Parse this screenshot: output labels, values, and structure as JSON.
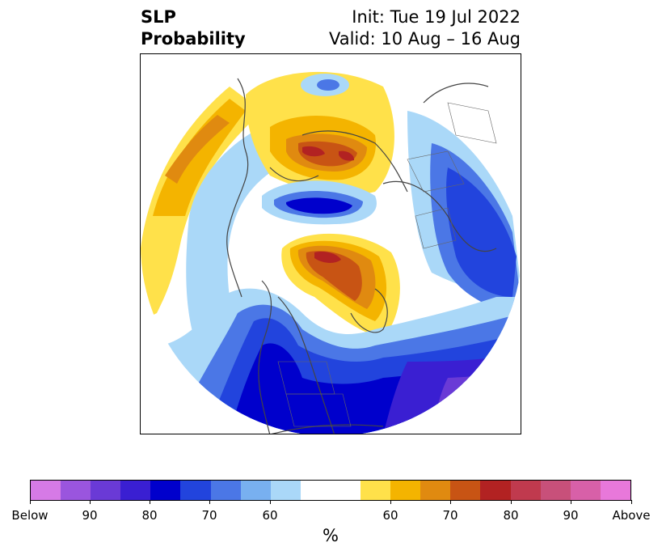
{
  "title": {
    "left_line1": "SLP",
    "left_line2": "Probability",
    "right_line1": "Init: Tue 19 Jul 2022",
    "right_line2": "Valid: 10 Aug – 16 Aug"
  },
  "colorbar": {
    "label": "%",
    "ticks": [
      "Below",
      "90",
      "80",
      "70",
      "60",
      "60",
      "70",
      "80",
      "90",
      "Above"
    ],
    "colors": [
      "#d67ae6",
      "#9a55de",
      "#6a3ad6",
      "#3a1fd2",
      "#0000cc",
      "#2244dd",
      "#4b77e6",
      "#78b0f0",
      "#aad8f8",
      "#ffffff",
      "#ffe14a",
      "#f4b400",
      "#e08a10",
      "#c85414",
      "#b22222",
      "#c03a4e",
      "#c8507a",
      "#d860a8",
      "#e878da"
    ]
  }
}
